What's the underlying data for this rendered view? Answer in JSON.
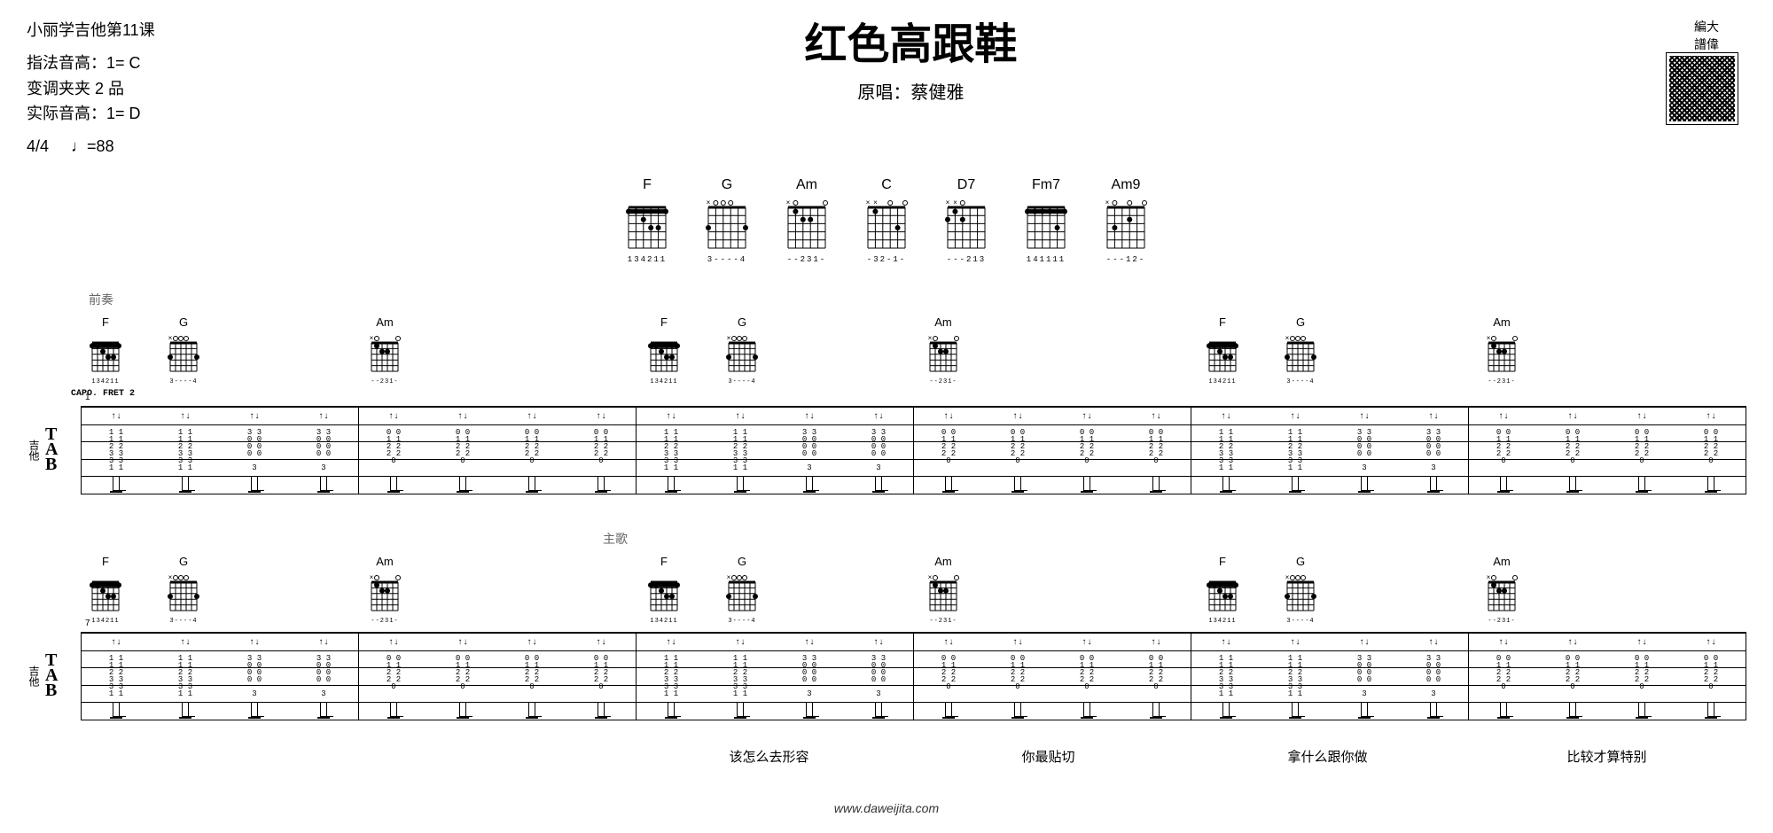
{
  "header": {
    "lesson": "小丽学吉他第11课",
    "info_lines": [
      "指法音高：1= C",
      "变调夹夹 2 品",
      "实际音高：1= D"
    ],
    "time_sig": "4/4",
    "tempo_mark": "♩=88",
    "title": "红色高跟鞋",
    "artist_label": "原唱：",
    "artist": "蔡健雅",
    "qr_brand": "編大\n譜偉"
  },
  "chord_legend": [
    {
      "name": "F",
      "dots": [
        [
          1,
          1
        ],
        [
          2,
          1
        ],
        [
          3,
          2
        ],
        [
          4,
          3
        ],
        [
          5,
          3
        ],
        [
          6,
          1
        ]
      ],
      "barre": 1,
      "open": "",
      "fingers": "134211"
    },
    {
      "name": "G",
      "dots": [
        [
          1,
          3
        ],
        [
          6,
          3
        ]
      ],
      "open": "×○○○",
      "fingers": "3----4"
    },
    {
      "name": "Am",
      "dots": [
        [
          2,
          1
        ],
        [
          3,
          2
        ],
        [
          4,
          2
        ]
      ],
      "open": "×○---○",
      "fingers": "--231-"
    },
    {
      "name": "C",
      "dots": [
        [
          2,
          1
        ],
        [
          5,
          3
        ]
      ],
      "open": "××-○-○",
      "fingers": "-32-1-"
    },
    {
      "name": "D7",
      "dots": [
        [
          1,
          2
        ],
        [
          2,
          1
        ],
        [
          3,
          2
        ]
      ],
      "open": "××○---",
      "fingers": "---213"
    },
    {
      "name": "Fm7",
      "dots": [
        [
          1,
          1
        ],
        [
          2,
          1
        ],
        [
          3,
          1
        ],
        [
          4,
          1
        ],
        [
          5,
          3
        ],
        [
          6,
          1
        ]
      ],
      "barre": 1,
      "open": "",
      "fingers": "141111"
    },
    {
      "name": "Am9",
      "dots": [
        [
          2,
          3
        ],
        [
          4,
          2
        ]
      ],
      "open": "×○-○-○",
      "fingers": "---12-"
    }
  ],
  "systems": [
    {
      "section_label": "前奏",
      "capo_note": "CAPO. FRET 2",
      "bar_start": 1,
      "chord_pattern": [
        "F",
        "G",
        "Am",
        "",
        "F",
        "G",
        "Am",
        "",
        "F",
        "G",
        "Am",
        ""
      ],
      "measures": [
        {
          "chords": [
            "F",
            "G"
          ],
          "tab": [
            "1-1  1-1  3-3  3-3",
            "1-1  1-1  0-0  0-0",
            "2-2  2-2  0-0  0-0",
            "3-3  3-3  0-0  0-0",
            "3-3  3-3  -    -  ",
            "1-1  1-1  3    3  "
          ],
          "arrows": "↑↓ ↑↓ ↑↓ ↑↓"
        },
        {
          "chords": [
            "Am"
          ],
          "tab": [
            "0-0  0-0  0-0  0-0",
            "1-1  1-1  1-1  1-1",
            "2-2  2-2  2-2  2-2",
            "2-2  2-2  2-2  2-2",
            "0    0    0    0  ",
            "-    -    -    -  "
          ],
          "arrows": "↑↓ ↑↓ ↑↓ ↑↓"
        },
        {
          "chords": [
            "F",
            "G"
          ],
          "tab": [
            "1-1  1-1  3-3  3-3",
            "1-1  1-1  0-0  0-0",
            "2-2  2-2  0-0  0-0",
            "3-3  3-3  0-0  0-0",
            "3-3  3-3  -    -  ",
            "1-1  1-1  3    3  "
          ],
          "arrows": "↑↓ ↑↓ ↑↓ ↑↓"
        },
        {
          "chords": [
            "Am"
          ],
          "tab": [
            "0-0  0-0  0-0  0-0",
            "1-1  1-1  1-1  1-1",
            "2-2  2-2  2-2  2-2",
            "2-2  2-2  2-2  2-2",
            "0    0    0    0  ",
            "-    -    -    -  "
          ],
          "arrows": "↑↓ ↑↓ ↑↓ ↑↓"
        },
        {
          "chords": [
            "F",
            "G"
          ],
          "tab": [
            "1-1  1-1  3-3  3-3",
            "1-1  1-1  0-0  0-0",
            "2-2  2-2  0-0  0-0",
            "3-3  3-3  0-0  0-0",
            "3-3  3-3  -    -  ",
            "1-1  1-1  3    3  "
          ],
          "arrows": "↑↓ ↑↓ ↑↓ ↑↓"
        },
        {
          "chords": [
            "Am"
          ],
          "tab": [
            "0-0  0-0  0-0  0-0",
            "1-1  1-1  1-1  1-1",
            "2-2  2-2  2-2  2-2",
            "2-2  2-2  2-2  2-2",
            "0    0    0    0  ",
            "-    -    -    -  "
          ],
          "arrows": "↑↓ ↑↓ ↑↓ ↑↓"
        }
      ],
      "lyrics": [
        "",
        "",
        "",
        "",
        "",
        ""
      ]
    },
    {
      "section_label": "主歌",
      "bar_start": 7,
      "chord_pattern": [
        "F",
        "G",
        "Am",
        "",
        "F",
        "G",
        "Am",
        "",
        "F",
        "G",
        "Am",
        ""
      ],
      "measures": [
        {
          "chords": [
            "F",
            "G"
          ],
          "tab": [
            "1-1  1-1  3-3  3-3",
            "1-1  1-1  0-0  0-0",
            "2-2  2-2  0-0  0-0",
            "3-3  3-3  0-0  0-0",
            "3-3  3-3  -    -  ",
            "1-1  1-1  3    3  "
          ],
          "arrows": "↑↓ ↑↓ ↑↓ ↑↓"
        },
        {
          "chords": [
            "Am"
          ],
          "tab": [
            "0-0  0-0  0-0  0-0",
            "1-1  1-1  1-1  1-1",
            "2-2  2-2  2-2  2-2",
            "2-2  2-2  2-2  2-2",
            "0    0    0    0  ",
            "-    -    -    -  "
          ],
          "arrows": "↑↓ ↑↓ ↑↓ ↑↓"
        },
        {
          "chords": [
            "F",
            "G"
          ],
          "tab": [
            "1-1  1-1  3-3  3-3",
            "1-1  1-1  0-0  0-0",
            "2-2  2-2  0-0  0-0",
            "3-3  3-3  0-0  0-0",
            "3-3  3-3  -    -  ",
            "1-1  1-1  3    3  "
          ],
          "arrows": "↑↓ ↑↓ ↑↓ ↑↓"
        },
        {
          "chords": [
            "Am"
          ],
          "tab": [
            "0-0  0-0  0-0  0-0",
            "1-1  1-1  1-1  1-1",
            "2-2  2-2  2-2  2-2",
            "2-2  2-2  2-2  2-2",
            "0    0    0    0  ",
            "-    -    -    -  "
          ],
          "arrows": "↑↓ ↑↓ ↑↓ ↑↓"
        },
        {
          "chords": [
            "F",
            "G"
          ],
          "tab": [
            "1-1  1-1  3-3  3-3",
            "1-1  1-1  0-0  0-0",
            "2-2  2-2  0-0  0-0",
            "3-3  3-3  0-0  0-0",
            "3-3  3-3  -    -  ",
            "1-1  1-1  3    3  "
          ],
          "arrows": "↑↓ ↑↓ ↑↓ ↑↓"
        },
        {
          "chords": [
            "Am"
          ],
          "tab": [
            "0-0  0-0  0-0  0-0",
            "1-1  1-1  1-1  1-1",
            "2-2  2-2  2-2  2-2",
            "2-2  2-2  2-2  2-2",
            "0    0    0    0  ",
            "-    -    -    -  "
          ],
          "arrows": "↑↓ ↑↓ ↑↓ ↑↓"
        }
      ],
      "lyrics": [
        "",
        "",
        "该怎么去形容",
        "你最贴切",
        "拿什么跟你做",
        "比较才算特别"
      ]
    }
  ],
  "footer_url": "www.daweijita.com",
  "colors": {
    "text": "#000000",
    "bg": "#ffffff",
    "muted": "#666666"
  }
}
